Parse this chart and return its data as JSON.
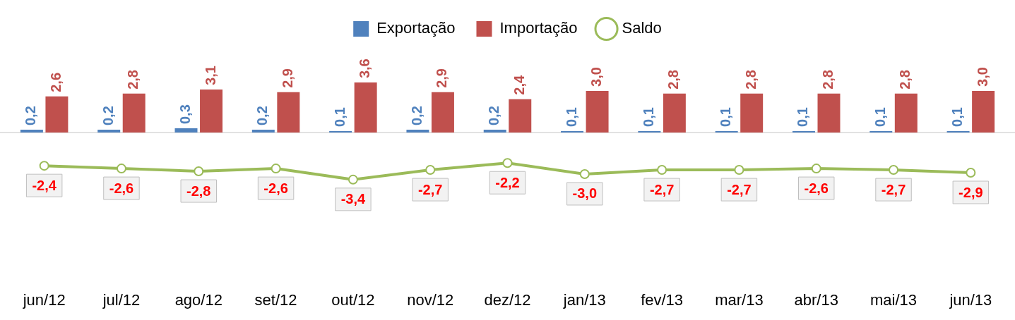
{
  "chart_data": {
    "type": "bar",
    "categories": [
      "jun/12",
      "jul/12",
      "ago/12",
      "set/12",
      "out/12",
      "nov/12",
      "dez/12",
      "jan/13",
      "fev/13",
      "mar/13",
      "abr/13",
      "mai/13",
      "jun/13"
    ],
    "series": [
      {
        "name": "Exportação",
        "color": "#4f81bd",
        "values": [
          0.2,
          0.2,
          0.3,
          0.2,
          0.1,
          0.2,
          0.2,
          0.1,
          0.1,
          0.1,
          0.1,
          0.1,
          0.1
        ],
        "value_labels": [
          "0,2",
          "0,2",
          "0,3",
          "0,2",
          "0,1",
          "0,2",
          "0,2",
          "0,1",
          "0,1",
          "0,1",
          "0,1",
          "0,1",
          "0,1"
        ]
      },
      {
        "name": "Importação",
        "color": "#c0504d",
        "values": [
          2.6,
          2.8,
          3.1,
          2.9,
          3.6,
          2.9,
          2.4,
          3.0,
          2.8,
          2.8,
          2.8,
          2.8,
          3.0
        ],
        "value_labels": [
          "2,6",
          "2,8",
          "3,1",
          "2,9",
          "3,6",
          "2,9",
          "2,4",
          "3,0",
          "2,8",
          "2,8",
          "2,8",
          "2,8",
          "3,0"
        ]
      },
      {
        "name": "Saldo",
        "type": "line",
        "color": "#9bbb59",
        "marker": "circle",
        "values": [
          -2.4,
          -2.6,
          -2.8,
          -2.6,
          -3.4,
          -2.7,
          -2.2,
          -3.0,
          -2.7,
          -2.7,
          -2.6,
          -2.7,
          -2.9
        ],
        "value_labels": [
          "-2,4",
          "-2,6",
          "-2,8",
          "-2,6",
          "-3,4",
          "-2,7",
          "-2,2",
          "-3,0",
          "-2,7",
          "-2,7",
          "-2,6",
          "-2,7",
          "-2,9"
        ]
      }
    ],
    "tick_labels": "x",
    "grid": false,
    "legend": "top",
    "ref_lines": [
      {
        "axis": "y",
        "value": 0,
        "color": "#d9d9d9"
      }
    ]
  }
}
